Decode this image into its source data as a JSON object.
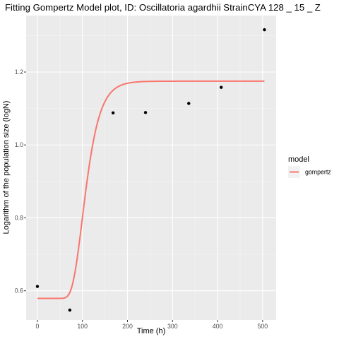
{
  "chart_data": {
    "type": "scatter",
    "title": "Fitting Gompertz Model plot, ID: Oscillatoria agardhii StrainCYA 128 _ 15 _ Z",
    "xlabel": "Time (h)",
    "ylabel": "Logarithm of the population size (logN)",
    "xlim": [
      -25,
      530
    ],
    "ylim": [
      0.52,
      1.355
    ],
    "x_ticks": [
      0,
      100,
      200,
      300,
      400,
      500
    ],
    "x_tick_labels": [
      "0",
      "100",
      "200",
      "300",
      "400",
      "500"
    ],
    "y_ticks": [
      0.6,
      0.8,
      1.0,
      1.2
    ],
    "y_tick_labels": [
      "0.6",
      "0.8",
      "1.0",
      "1.2"
    ],
    "grid": true,
    "points": {
      "x": [
        0,
        72,
        168,
        240,
        336,
        408,
        504
      ],
      "y": [
        0.612,
        0.547,
        1.088,
        1.089,
        1.114,
        1.158,
        1.316
      ]
    },
    "series": [
      {
        "name": "gompertz",
        "type": "line",
        "color": "#f8766d",
        "model": {
          "y0": 0.579,
          "A": 0.596,
          "mu": 0.0101,
          "lag": 78
        },
        "x_range": [
          0,
          504
        ]
      }
    ],
    "legend": {
      "title": "model",
      "position": "right",
      "entries": [
        {
          "label": "gompertz",
          "color": "#f8766d"
        }
      ]
    },
    "colors": {
      "panel": "#ebebeb",
      "grid_major": "#ffffff",
      "point": "#000000"
    }
  }
}
